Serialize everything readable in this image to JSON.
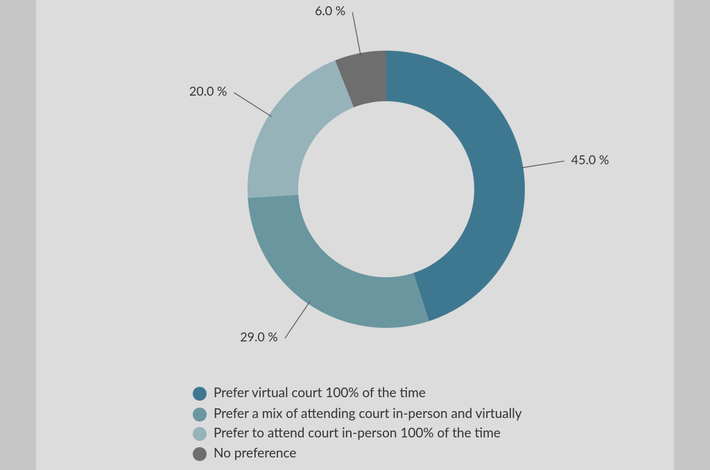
{
  "chart_data": {
    "type": "donut",
    "categories": [
      "Prefer virtual court 100% of the time",
      "Prefer a mix of attending court in-person and virtually",
      "Prefer to attend court in-person 100% of the time",
      "No preference"
    ],
    "values": [
      45,
      29,
      20,
      6
    ],
    "value_labels": [
      "45.0 %",
      "29.0 %",
      "20.0 %",
      "6.0 %"
    ],
    "colors": [
      "#3e7890",
      "#6a969f",
      "#95b3b9",
      "#6e6e6e"
    ]
  }
}
